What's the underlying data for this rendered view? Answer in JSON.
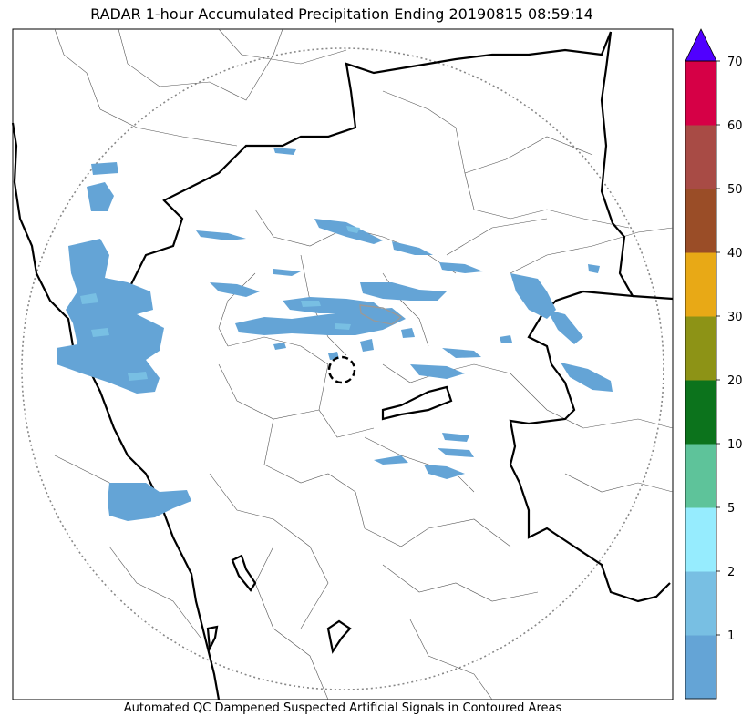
{
  "title": "RADAR 1-hour Accumulated Precipitation Ending 20190815 08:59:14",
  "footer_note": "Automated QC Dampened Suspected Artificial Signals in Contoured Areas",
  "colorbar": {
    "tick_labels": [
      "1",
      "2",
      "5",
      "10",
      "20",
      "30",
      "40",
      "50",
      "60",
      "70"
    ],
    "bins": [
      {
        "from": 0,
        "to": 1,
        "color": "#64a4d6"
      },
      {
        "from": 1,
        "to": 2,
        "color": "#78bfe3"
      },
      {
        "from": 2,
        "to": 5,
        "color": "#96ecfe"
      },
      {
        "from": 5,
        "to": 10,
        "color": "#5ec39a"
      },
      {
        "from": 10,
        "to": 20,
        "color": "#0c731c"
      },
      {
        "from": 20,
        "to": 30,
        "color": "#8d9316"
      },
      {
        "from": 30,
        "to": 40,
        "color": "#e8a916"
      },
      {
        "from": 40,
        "to": 50,
        "color": "#9a4d27"
      },
      {
        "from": 50,
        "to": 60,
        "color": "#a84b45"
      },
      {
        "from": 60,
        "to": 70,
        "color": "#d60046"
      }
    ],
    "extend_color": "#5000ff"
  }
}
